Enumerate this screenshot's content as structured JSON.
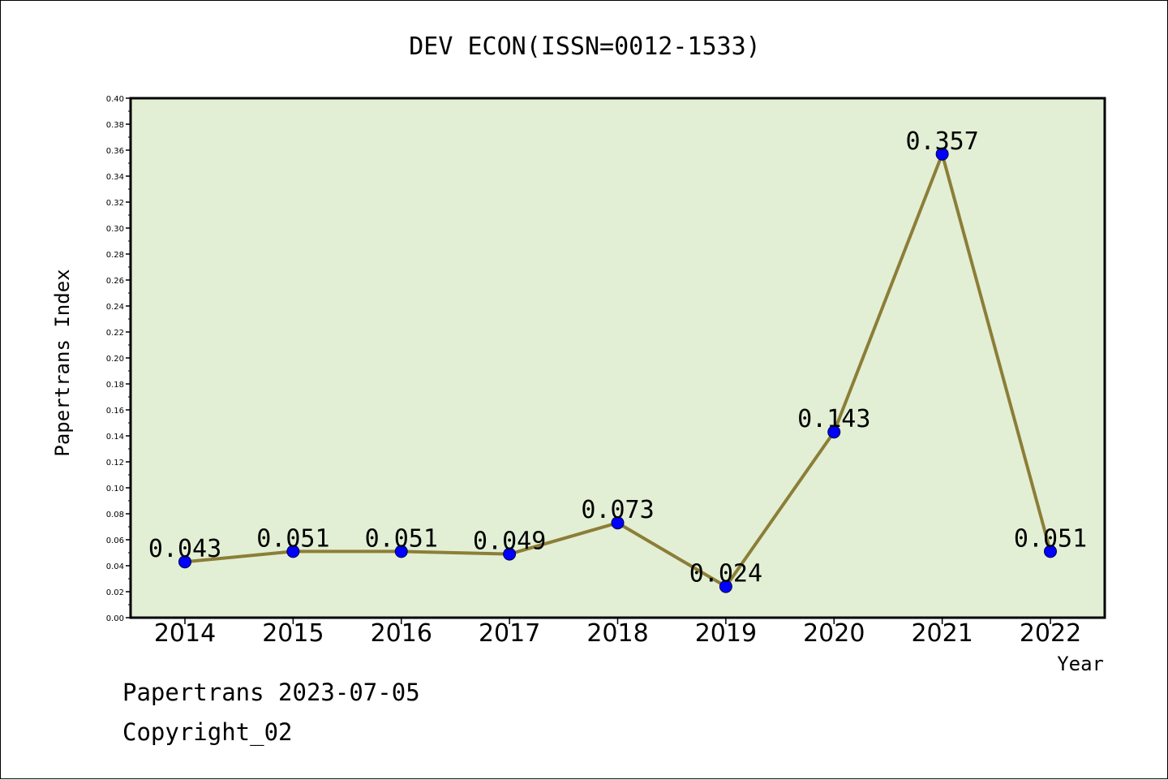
{
  "chart_data": {
    "type": "line",
    "title": "DEV ECON(ISSN=0012-1533)",
    "xlabel": "Year",
    "ylabel": "Papertrans Index",
    "categories": [
      "2014",
      "2015",
      "2016",
      "2017",
      "2018",
      "2019",
      "2020",
      "2021",
      "2022"
    ],
    "series": [
      {
        "values": [
          0.043,
          0.051,
          0.051,
          0.049,
          0.073,
          0.024,
          0.143,
          0.357,
          0.051
        ],
        "data_labels": [
          "0.043",
          "0.051",
          "0.051",
          "0.049",
          "0.073",
          "0.024",
          "0.143",
          "0.357",
          "0.051"
        ]
      }
    ],
    "ylim": [
      0.0,
      0.4
    ],
    "yticks": [
      "0.00",
      "0.02",
      "0.04",
      "0.06",
      "0.08",
      "0.10",
      "0.12",
      "0.14",
      "0.16",
      "0.18",
      "0.20",
      "0.22",
      "0.24",
      "0.26",
      "0.28",
      "0.30",
      "0.32",
      "0.34",
      "0.36",
      "0.38",
      "0.40"
    ],
    "grid": false,
    "colors": {
      "plot_background": "#e2efd5",
      "line": "#8c7e37",
      "marker": "#0000ff"
    }
  },
  "footer": {
    "line1": "Papertrans 2023-07-05",
    "line2": "Copyright_02"
  }
}
